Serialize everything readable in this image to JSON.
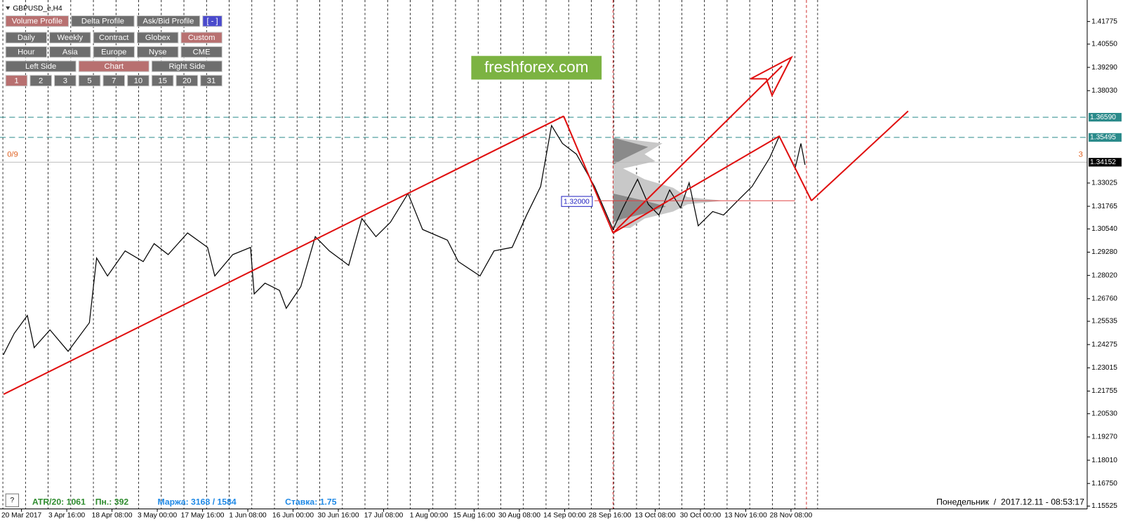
{
  "window": {
    "title": "GBPUSD_e,H4"
  },
  "toolbar": {
    "rows": [
      [
        {
          "label": "Volume Profile",
          "active": true
        },
        {
          "label": "Delta Profile"
        },
        {
          "label": "Ask/Bid Profile"
        },
        {
          "label": "[ - ]",
          "accent": true
        }
      ],
      [
        {
          "label": "Daily"
        },
        {
          "label": "Weekly"
        },
        {
          "label": "Contract"
        },
        {
          "label": "Globex"
        },
        {
          "label": "Custom",
          "active": true
        }
      ],
      [
        {
          "label": "Hour"
        },
        {
          "label": "Asia"
        },
        {
          "label": "Europe"
        },
        {
          "label": "Nyse"
        },
        {
          "label": "CME"
        }
      ],
      [
        {
          "label": "Left Side"
        },
        {
          "label": "Chart",
          "active": true
        },
        {
          "label": "Right Side"
        }
      ],
      [
        {
          "label": "1",
          "active": true
        },
        {
          "label": "2"
        },
        {
          "label": "3"
        },
        {
          "label": "5"
        },
        {
          "label": "7"
        },
        {
          "label": "10"
        },
        {
          "label": "15"
        },
        {
          "label": "20"
        },
        {
          "label": "31"
        }
      ]
    ]
  },
  "watermark": "freshforex.com",
  "counter_left": "0/9",
  "counter_right": "3",
  "level_tag": "1.32000",
  "status": {
    "atr": "ATR/20: 1061",
    "mon": "Пн.: 392",
    "margin": "Маржа: 3168 / 1584",
    "rate": "Ставка: 1.75",
    "clock": "Понедельник  /  2017.12.11 - 08:53:17",
    "help": "?"
  },
  "chart_data": {
    "type": "line",
    "color": "#000000",
    "x": [
      -0.4,
      -0.16,
      0.13,
      0.28,
      0.63,
      1.03,
      1.5,
      1.66,
      1.9,
      2.29,
      2.69,
      2.93,
      3.24,
      3.67,
      4.11,
      4.27,
      4.67,
      5.06,
      5.14,
      5.38,
      5.7,
      5.85,
      6.17,
      6.49,
      6.8,
      7.23,
      7.52,
      7.83,
      8.15,
      8.54,
      8.86,
      9.41,
      9.65,
      10.13,
      10.44,
      10.84,
      11.16,
      11.47,
      11.71,
      11.95,
      12.26,
      12.66,
      13.07,
      13.29,
      13.61,
      13.85,
      14.08,
      14.32,
      14.56,
      14.75,
      14.95,
      15.27,
      15.51,
      15.82,
      16.14,
      16.53,
      16.74,
      17.09,
      17.22,
      17.31
    ],
    "values": [
      1.2372,
      1.2488,
      1.2585,
      1.2411,
      1.2507,
      1.2391,
      1.2546,
      1.2896,
      1.2799,
      1.2935,
      1.2877,
      1.2974,
      1.2915,
      1.3032,
      1.2954,
      1.2799,
      1.2915,
      1.2954,
      1.2702,
      1.276,
      1.2721,
      1.2624,
      1.2741,
      1.3012,
      1.2935,
      1.2857,
      1.311,
      1.3012,
      1.309,
      1.3246,
      1.3051,
      1.2993,
      1.2877,
      1.2799,
      1.2935,
      1.2954,
      1.3129,
      1.3284,
      1.3614,
      1.3517,
      1.3459,
      1.3284,
      1.3051,
      1.3168,
      1.3323,
      1.3187,
      1.3129,
      1.3265,
      1.3168,
      1.3304,
      1.3071,
      1.3148,
      1.3129,
      1.3206,
      1.3284,
      1.3439,
      1.3556,
      1.3381,
      1.3517,
      1.3401
    ],
    "xlim": [
      -0.4747,
      23.544
    ],
    "ylim": [
      1.1537,
      1.4294
    ],
    "xticks": [
      {
        "value": 0,
        "label": "20 Mar 2017"
      },
      {
        "value": 1,
        "label": "3 Apr 16:00"
      },
      {
        "value": 2,
        "label": "18 Apr 08:00"
      },
      {
        "value": 3,
        "label": "3 May 00:00"
      },
      {
        "value": 4,
        "label": "17 May 16:00"
      },
      {
        "value": 5,
        "label": "1 Jun 08:00"
      },
      {
        "value": 6,
        "label": "16 Jun 00:00"
      },
      {
        "value": 7,
        "label": "30 Jun 16:00"
      },
      {
        "value": 8,
        "label": "17 Jul 08:00"
      },
      {
        "value": 9,
        "label": "1 Aug 00:00"
      },
      {
        "value": 10,
        "label": "15 Aug 16:00"
      },
      {
        "value": 11,
        "label": "30 Aug 08:00"
      },
      {
        "value": 12,
        "label": "14 Sep 00:00"
      },
      {
        "value": 13,
        "label": "28 Sep 16:00"
      },
      {
        "value": 14,
        "label": "13 Oct 08:00"
      },
      {
        "value": 15,
        "label": "30 Oct 00:00"
      },
      {
        "value": 16,
        "label": "13 Nov 16:00"
      },
      {
        "value": 17,
        "label": "28 Nov 08:00"
      }
    ],
    "yticks": [
      1.41775,
      {
        "value": 1.4055,
        "label": "1.40550"
      },
      {
        "value": 1.3929,
        "label": "1.39290"
      },
      {
        "value": 1.3803,
        "label": "1.38030"
      },
      1.33025,
      1.31765,
      {
        "value": 1.3054,
        "label": "1.30540"
      },
      {
        "value": 1.2928,
        "label": "1.29280"
      },
      {
        "value": 1.2802,
        "label": "1.28020"
      },
      {
        "value": 1.2676,
        "label": "1.26760"
      },
      1.25535,
      1.24275,
      1.23015,
      1.21755,
      {
        "value": 1.2053,
        "label": "1.20530"
      },
      {
        "value": 1.1927,
        "label": "1.19270"
      },
      {
        "value": 1.1801,
        "label": "1.18010"
      },
      {
        "value": 1.1675,
        "label": "1.16750"
      },
      1.15525
    ],
    "levels": [
      {
        "value": 1.3659,
        "label": "1.36590",
        "color": "#2a8a8a"
      },
      {
        "value": 1.35495,
        "label": "1.35495",
        "color": "#2a8a8a"
      },
      {
        "value": 1.34152,
        "label": "1.34152",
        "color": "#000000"
      }
    ]
  }
}
